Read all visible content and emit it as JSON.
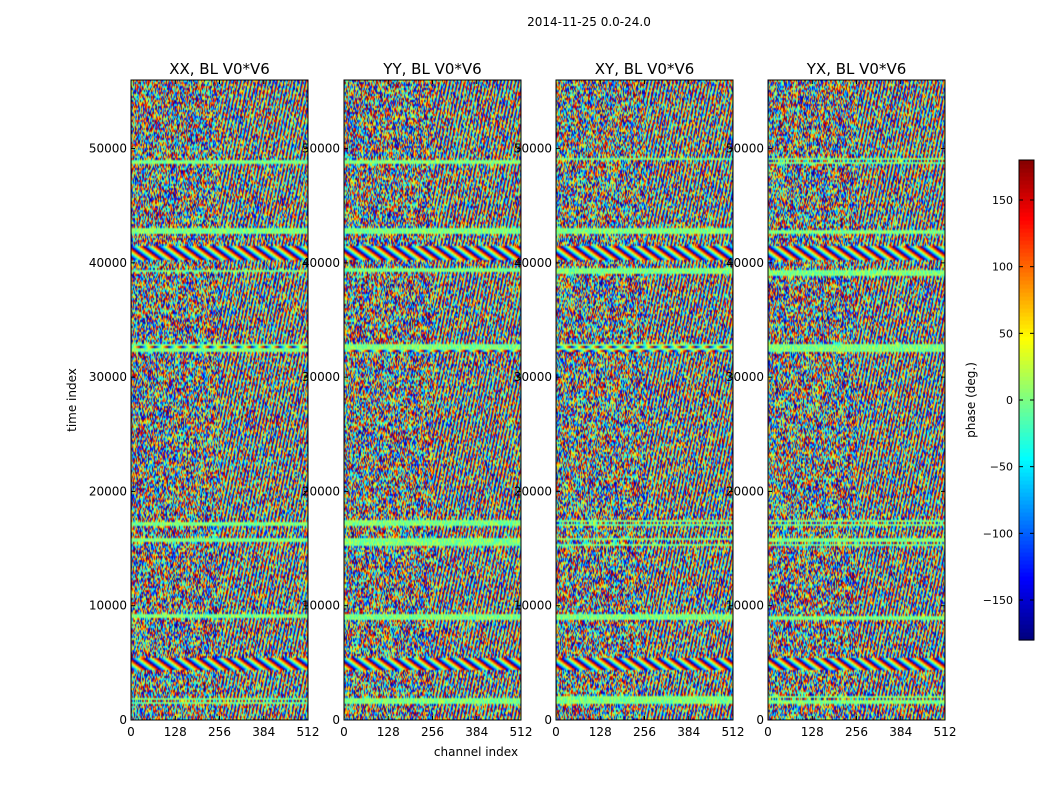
{
  "suptitle": "2014-11-25 0.0-24.0",
  "chart_data": {
    "type": "heatmap",
    "xlabel": "channel index",
    "ylabel": "time index",
    "xlim": [
      0,
      512
    ],
    "ylim": [
      0,
      56000
    ],
    "xticks": [
      "0",
      "128",
      "256",
      "384",
      "512"
    ],
    "yticks": [
      "0",
      "10000",
      "20000",
      "30000",
      "40000",
      "50000"
    ],
    "panels": [
      {
        "title": "XX, BL V0*V6",
        "pol": "XX"
      },
      {
        "title": "YY, BL V0*V6",
        "pol": "YY"
      },
      {
        "title": "XY, BL V0*V6",
        "pol": "XY"
      },
      {
        "title": "YX, BL V0*V6",
        "pol": "YX"
      }
    ],
    "colorbar": {
      "label": "phase (deg.)",
      "range": [
        -180,
        180
      ],
      "ticks": [
        "150",
        "100",
        "50",
        "0",
        "−50",
        "−100",
        "−150"
      ],
      "colormap": "jet"
    },
    "flagged_time_bands": [
      [
        1500,
        2200
      ],
      [
        8800,
        9300
      ],
      [
        15400,
        16000
      ],
      [
        17000,
        17600
      ],
      [
        32300,
        33000
      ],
      [
        39000,
        39700
      ],
      [
        42600,
        43100
      ],
      [
        48800,
        49300
      ]
    ],
    "bright_fringe_bands": [
      [
        4500,
        5500
      ],
      [
        32300,
        33000
      ],
      [
        40300,
        41600
      ]
    ]
  }
}
